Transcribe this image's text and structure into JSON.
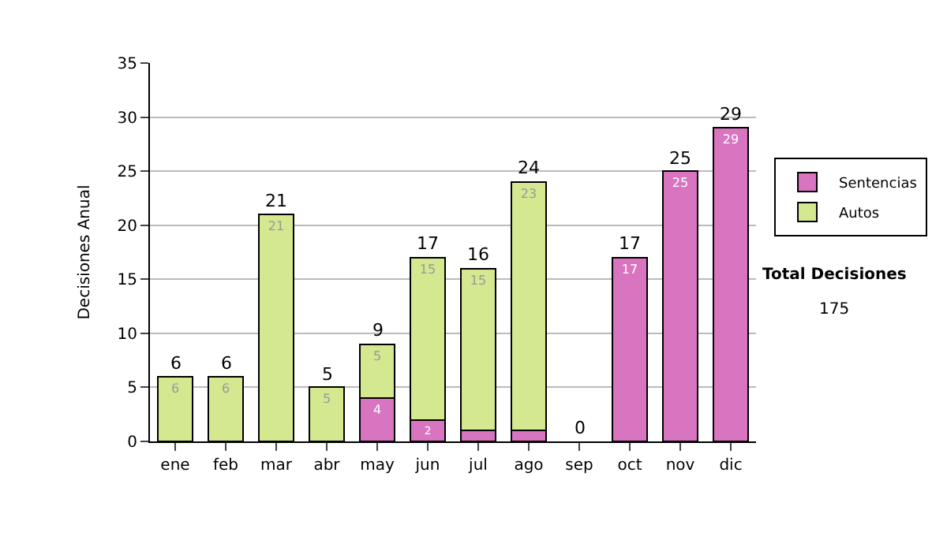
{
  "chart_data": {
    "type": "bar",
    "stacked": true,
    "ylabel": "Decisiones Anual",
    "categories": [
      "ene",
      "feb",
      "mar",
      "abr",
      "may",
      "jun",
      "jul",
      "ago",
      "sep",
      "oct",
      "nov",
      "dic"
    ],
    "series": [
      {
        "name": "Sentencias",
        "color": "#d874c0",
        "values": [
          null,
          null,
          null,
          null,
          4,
          2,
          1,
          1,
          null,
          17,
          25,
          29
        ],
        "value_labels": [
          null,
          null,
          null,
          null,
          "4",
          "2",
          null,
          null,
          null,
          "17",
          "25",
          "29"
        ]
      },
      {
        "name": "Autos",
        "color": "#d4e890",
        "values": [
          6,
          6,
          21,
          5,
          5,
          15,
          15,
          23,
          null,
          null,
          null,
          null
        ],
        "value_labels": [
          "6",
          "6",
          "21",
          "5",
          "5",
          "15",
          "15",
          "23",
          null,
          null,
          null,
          null
        ]
      }
    ],
    "totals": [
      "6",
      "6",
      "21",
      "5",
      "9",
      "17",
      "16",
      "24",
      "0",
      "17",
      "25",
      "29"
    ],
    "ylim": [
      0,
      35
    ],
    "yticks": [
      0,
      5,
      10,
      15,
      20,
      25,
      30,
      35
    ],
    "grid": "y",
    "legend": "right",
    "annotations": [
      "Total Decisiones",
      "175"
    ]
  }
}
